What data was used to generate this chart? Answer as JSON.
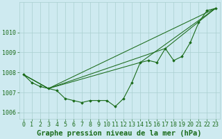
{
  "title": "Graphe pression niveau de la mer (hPa)",
  "background_color": "#ceeaf0",
  "grid_color": "#aacfcf",
  "line_color": "#1a6b1a",
  "marker_color": "#1a6b1a",
  "xlim": [
    -0.5,
    23.5
  ],
  "ylim": [
    1005.7,
    1011.5
  ],
  "yticks": [
    1006,
    1007,
    1008,
    1009,
    1010
  ],
  "xtick_labels": [
    "0",
    "1",
    "2",
    "3",
    "4",
    "5",
    "6",
    "7",
    "8",
    "9",
    "10",
    "11",
    "12",
    "13",
    "14",
    "15",
    "16",
    "17",
    "18",
    "19",
    "20",
    "21",
    "22",
    "23"
  ],
  "line1_x": [
    0,
    1,
    2,
    3,
    4,
    5,
    6,
    7,
    8,
    9,
    10,
    11,
    12,
    13,
    14,
    15,
    16,
    17,
    18,
    19,
    20,
    21,
    22,
    23
  ],
  "line1_y": [
    1007.9,
    1007.5,
    1007.3,
    1007.2,
    1007.1,
    1006.7,
    1006.6,
    1006.5,
    1006.6,
    1006.6,
    1006.6,
    1006.3,
    1006.7,
    1007.5,
    1008.5,
    1008.6,
    1008.5,
    1009.2,
    1008.6,
    1008.8,
    1009.5,
    1010.5,
    1011.1,
    1011.2
  ],
  "line2_x": [
    0,
    3,
    23
  ],
  "line2_y": [
    1007.9,
    1007.2,
    1011.2
  ],
  "line3_x": [
    0,
    3,
    14,
    23
  ],
  "line3_y": [
    1007.9,
    1007.2,
    1008.5,
    1011.2
  ],
  "line4_x": [
    0,
    3,
    17,
    23
  ],
  "line4_y": [
    1007.9,
    1007.2,
    1009.2,
    1011.2
  ],
  "title_fontsize": 7.5,
  "tick_fontsize": 6.0
}
